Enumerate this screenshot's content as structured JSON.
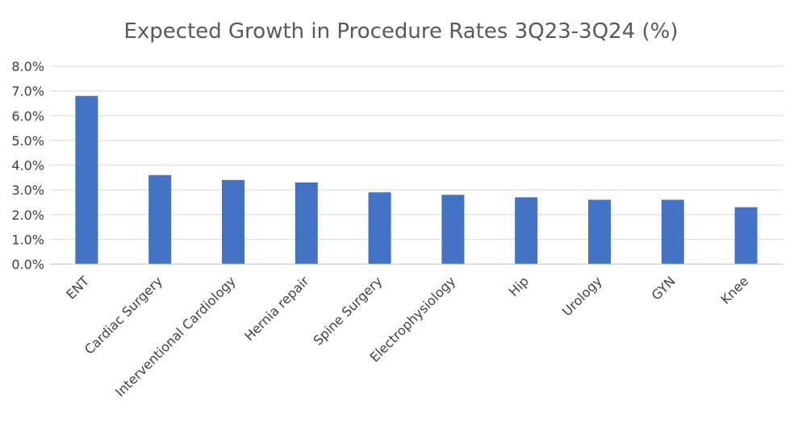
{
  "chart_data": {
    "type": "bar",
    "title": "Expected Growth in Procedure Rates 3Q23-3Q24 (%)",
    "xlabel": "",
    "ylabel": "",
    "categories": [
      "ENT",
      "Cardiac Surgery",
      "Interventional Cardiology",
      "Hernia repair",
      "Spine Surgery",
      "Electrophysiology",
      "Hip",
      "Urology",
      "GYN",
      "Knee"
    ],
    "values": [
      6.8,
      3.6,
      3.4,
      3.3,
      2.9,
      2.8,
      2.7,
      2.6,
      2.6,
      2.3
    ],
    "ylim": [
      0,
      8
    ],
    "yticks": [
      "0.0%",
      "1.0%",
      "2.0%",
      "3.0%",
      "4.0%",
      "5.0%",
      "6.0%",
      "7.0%",
      "8.0%"
    ],
    "grid": true,
    "legend": "none",
    "bar_color": "#4472C4",
    "grid_color": "#D9D9D9"
  }
}
